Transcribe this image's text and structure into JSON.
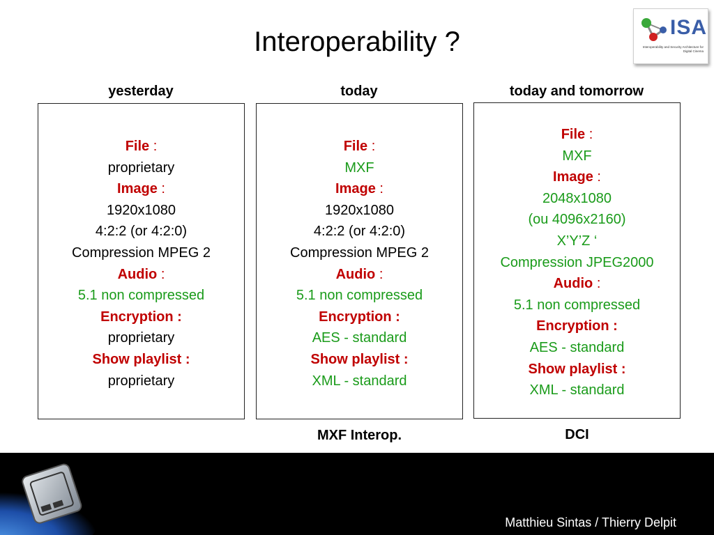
{
  "slide": {
    "title": "Interoperability ?",
    "author": "Matthieu Sintas / Thierry Delpit"
  },
  "logo": {
    "text": "ISA",
    "subtitle": "Interoperability and Security Architecture for Digital Cinema"
  },
  "colors": {
    "label_red": "#c00000",
    "value_green": "#1a9b1a",
    "footer_bg": "#000000"
  },
  "columns": [
    {
      "heading": "yesterday",
      "footer": "",
      "file_label": "File",
      "file_value": "proprietary",
      "image_label": "Image",
      "image_lines": [
        "1920x1080",
        "4:2:2 (or 4:2:0)",
        "Compression MPEG 2"
      ],
      "audio_label": "Audio",
      "audio_value": "5.1 non compressed",
      "encryption_label": "Encryption :",
      "encryption_value": "proprietary",
      "playlist_label": "Show playlist :",
      "playlist_value": "proprietary"
    },
    {
      "heading": "today",
      "footer": "MXF Interop.",
      "file_label": "File",
      "file_value": "MXF",
      "image_label": "Image",
      "image_lines": [
        "1920x1080",
        "4:2:2 (or 4:2:0)",
        "Compression MPEG 2"
      ],
      "audio_label": "Audio",
      "audio_value": "5.1 non compressed",
      "encryption_label": "Encryption :",
      "encryption_value": "AES - standard",
      "playlist_label": "Show playlist :",
      "playlist_value": "XML - standard"
    },
    {
      "heading": "today and tomorrow",
      "footer": "DCI",
      "file_label": "File",
      "file_value": "MXF",
      "image_label": "Image",
      "image_lines": [
        "2048x1080",
        "(ou 4096x2160)",
        "X’Y’Z ‘",
        "Compression JPEG2000"
      ],
      "audio_label": "Audio",
      "audio_value": "5.1 non compressed",
      "encryption_label": "Encryption :",
      "encryption_value": "AES - standard",
      "playlist_label": "Show playlist :",
      "playlist_value": "XML - standard"
    }
  ]
}
